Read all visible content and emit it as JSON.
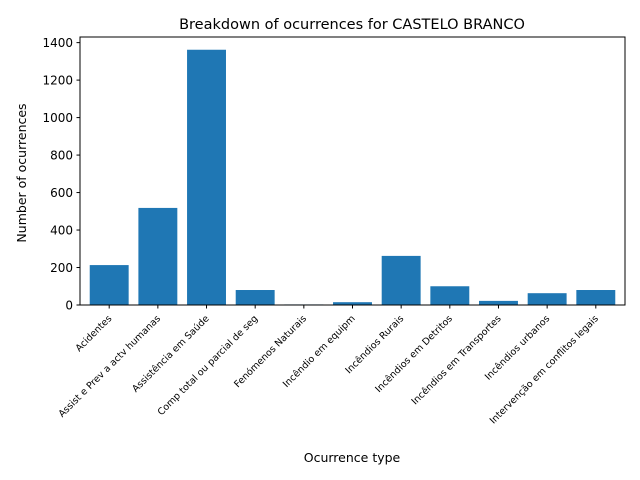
{
  "chart_data": {
    "type": "bar",
    "title": "Breakdown of ocurrences for CASTELO BRANCO",
    "xlabel": "Ocurrence type",
    "ylabel": "Number of ocurrences",
    "categories": [
      "Acidentes",
      "Assist e Prev a actv humanas",
      "Assistência em Saúde",
      "Comp total ou parcial de seg",
      "Fenómenos Naturais",
      "Incêndio em equipm",
      "Incêndios Rurais",
      "Incêndios em Detritos",
      "Incêndios em Transportes",
      "Incêndios urbanos",
      "Intervenção em conflitos legais"
    ],
    "values": [
      213,
      518,
      1362,
      80,
      3,
      15,
      262,
      100,
      22,
      63,
      80
    ],
    "ylim": [
      0,
      1430
    ],
    "yticks": [
      0,
      200,
      400,
      600,
      800,
      1000,
      1200,
      1400
    ],
    "ytick_labels": [
      "0",
      "200",
      "400",
      "600",
      "800",
      "1000",
      "1200",
      "1400"
    ],
    "grid": false,
    "legend": false,
    "bar_color": "#1f77b4"
  }
}
